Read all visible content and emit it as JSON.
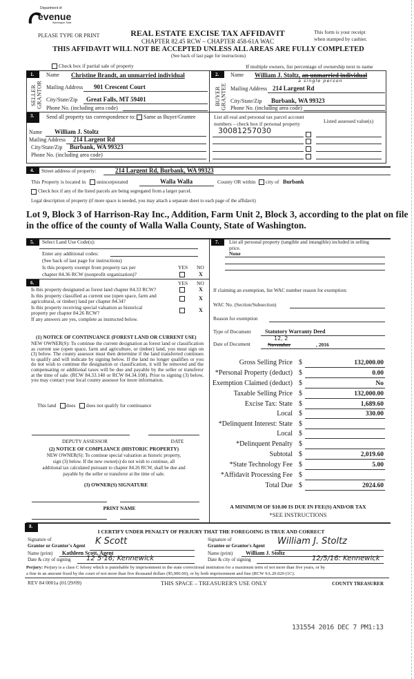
{
  "header": {
    "logo_text_top": "Department of",
    "logo_text_main": "evenue",
    "logo_text_sub": "Washington State",
    "please_type": "PLEASE TYPE OR PRINT",
    "title": "REAL ESTATE EXCISE TAX AFFIDAVIT",
    "chapter": "CHAPTER 82.45 RCW – CHAPTER 458-61A WAC",
    "receipt_line1": "This form is your receipt",
    "receipt_line2": "when stamped by cashier.",
    "warning": "THIS AFFIDAVIT WILL NOT BE ACCEPTED UNLESS ALL AREAS ARE FULLY COMPLETED",
    "see_back": "(See back of last page for instructions)",
    "partial_sale": "Check box if partial sale of property",
    "multiple_owners": "If multiple owners, list percentage of ownership next to name"
  },
  "seller": {
    "num": "1.",
    "side_label": "SELLER GRANTOR",
    "name_label": "Name",
    "name": "Christine Brandt, an unmarried individual",
    "mailing_label": "Mailing Address",
    "mailing": "901 Crescent Court",
    "city_label": "City/State/Zip",
    "city": "Great Falls, MT 59401",
    "phone_label": "Phone No. (including area code)"
  },
  "buyer": {
    "num": "2.",
    "side_label": "BUYER GRANTEE",
    "name_label": "Name",
    "name": "William J. Stoltz, ",
    "name_struck": "an unmarried individual",
    "name_handwritten": "a single person",
    "mailing_label": "Mailing Address",
    "mailing": "214 Largent Rd",
    "city_label": "City/State/Zip",
    "city": "Burbank, WA 99323",
    "phone_label": "Phone No. (including area code)"
  },
  "correspondence": {
    "num": "3.",
    "send_to": "Send all property tax correspondence to:",
    "same_as": "Same as Buyer/Grantee",
    "name_label": "Name",
    "name": "William J. Stoltz",
    "mailing_label": "Mailing Address",
    "mailing": "214 Largent Rd",
    "city_label": "City/State/Zip",
    "city": "Burbank, WA 99323",
    "phone_label": "Phone No. (including area code)",
    "parcel_header1": "List all real and personal tax parcel account",
    "parcel_header2": "numbers – check box if personal property",
    "assessed_header": "Listed assessed value(s)",
    "parcel_number": "30081257030"
  },
  "property": {
    "num": "4.",
    "street_label": "Street address of property:",
    "street": "214 Largent Rd, Burbank, WA  99323",
    "located_in": "This Property is located in",
    "unincorporated": "unincorporated",
    "county": "Walla Walla",
    "county_or": "County OR  within",
    "city_of": "city of",
    "city": "Burbank",
    "segregated": "Check box if any of the listed parcels are being segregated from a larger parcel.",
    "legal_label": "Legal description of property (if more space is needed, you may attach a separate sheet to each page of the affidavit)",
    "legal_line1": "Lot 9, Block 3 of Harrison-Ray Inc., Addition, Farm Unit 2, Block 3, according to the plat on file",
    "legal_line2": "in the office of the county of  Walla Walla County, State of Washington."
  },
  "land_use": {
    "num": "5.",
    "select_label": "Select Land Use Code(s):",
    "additional": "Enter any additional codes:",
    "see_back": "(See back of last page for instructions)",
    "exempt_q1": "Is this property exempt from property tax per",
    "exempt_q2": "chapter 84.36 RCW (nonprofit organization)?",
    "yes": "YES",
    "no": "NO",
    "exempt_answer": "X"
  },
  "section6": {
    "num": "6.",
    "yes": "YES",
    "no": "NO",
    "q_forest": "Is this property designated as forest land chapter 84.33 RCW?",
    "q_current1": "Is this property classified as current use (open space, farm and",
    "q_current2": "agricultural, or timber) land per chapter 84.34?",
    "q_hist1": "Is this property receiving special valuation as historical",
    "q_hist2": "property per chapter 84.26 RCW?",
    "answers": [
      "X",
      "X",
      "X"
    ],
    "if_any": "If any answers are yes, complete as instructed below.",
    "notice1_title": "(1) NOTICE OF CONTINUANCE (FOREST LAND OR CURRENT USE)",
    "notice1_text": "NEW OWNER(S): To continue the current designation as forest land or classification as current use (open space, farm and agriculture, or timber) land, you must sign on (3) below. The county assessor must then determine if the land transferred continues to qualify and will indicate by signing below. If the land no longer qualifies or you do not wish to continue the designation or classification, it will be removed and the compensating or additional taxes will be due and payable by the seller or transferor at the time of sale. (RCW 84.33.140 or RCW 84.34.108). Prior to signing (3) below, you may contact your local county assessor for more information.",
    "this_land": "This land",
    "does": "does",
    "does_not": "does not  qualify for continuance",
    "deputy_assessor": "DEPUTY ASSESSOR",
    "date": "DATE",
    "notice2_title": "(2) NOTICE OF COMPLIANCE (HISTORIC PROPERTY)",
    "notice2_l1": "NEW OWNER(S):  To continue special valuation as historic property,",
    "notice2_l2": "sign (3) below.  If the new owner(s) do not wish to continue, all",
    "notice2_l3": "additional tax calculated pursuant to chapter 84.26 RCW, shall be due and",
    "notice2_l4": "payable by the seller or transferor at the time of sale.",
    "owner_signature": "(3)  OWNER(S) SIGNATURE",
    "print_name": "PRINT NAME"
  },
  "section7": {
    "num": "7.",
    "label1": "List all personal property (tangible and intangible) included in selling",
    "label2": "price.",
    "value": "None",
    "exemption_q": "If claiming an exemption, list WAC number reason for exemption:",
    "wac_label": "WAC No. (Section/Subsection)",
    "reason_label": "Reason for exemption",
    "doc_type_label": "Type of Document",
    "doc_type": "Statutory Warranty Deed",
    "doc_date_label": "Date of Document",
    "doc_date_hand": "12, 2",
    "doc_date_month": "November",
    "doc_date_year": ", 2016"
  },
  "tax": {
    "rows": [
      {
        "label": "Gross Selling Price",
        "value": "132,000.00"
      },
      {
        "label": "*Personal Property (deduct)",
        "value": "0.00"
      },
      {
        "label": "Exemption Claimed (deduct)",
        "value": "No"
      },
      {
        "label": "Taxable Selling Price",
        "value": "132,000.00"
      },
      {
        "label": "Excise Tax:  State",
        "value": "1,689.60"
      },
      {
        "label": "Local",
        "value": "330.00"
      },
      {
        "label": "*Delinquent Interest:  State",
        "value": ""
      },
      {
        "label": "Local",
        "value": ""
      },
      {
        "label": "*Delinquent Penalty",
        "value": ""
      },
      {
        "label": "Subtotal",
        "value": "2,019.60"
      },
      {
        "label": "*State Technology Fee",
        "value": "5.00"
      },
      {
        "label": "*Affidavit Processing Fee",
        "value": ""
      },
      {
        "label": "Total Due",
        "value": "2024.60"
      }
    ],
    "currency": "$",
    "minimum": "A MINIMUM OF $10.00 IS DUE IN FEE(S) AND/OR TAX",
    "see_instructions": "*SEE INSTRUCTIONS"
  },
  "section8": {
    "num": "8.",
    "certify": "I CERTIFY UNDER PENALTY OF PERJURY THAT THE FOREGOING IS TRUE AND CORRECT",
    "sig_of": "Signature of",
    "grantor_agent": "Grantor or Grantor's Agent",
    "grantee_agent": "Grantee or Grantee's Agent",
    "name_print": "Name (print)",
    "date_city": "Date & city of signing",
    "grantor_signature": "K Scott",
    "grantor_name": "Kathleen Scott, Agent",
    "grantor_date": "12 5·16; Kennewick",
    "grantee_signature": "William J. Stoltz",
    "grantee_name": "William J. Stoltz",
    "grantee_date": "12/5/16: Kennewick",
    "perjury_label": "Perjury:",
    "perjury_l1": "Perjury is a class C felony which is punishable by imprisonment in the state correctional institution for a maximum term of not more than five years, or by",
    "perjury_l2": "a fine in an amount fixed by the court of not more than five thousand dollars ($5,000.00), or by both imprisonment and fine (RCW 9A.20.020 (1C).",
    "rev": "REV 84 0001a (01/29/09)",
    "treasurer_space": "THIS SPACE – TREASURER'S USE ONLY",
    "county_treasurer": "COUNTY TREASURER",
    "stamp": "131554 2016 DEC 7 PM1:13"
  }
}
